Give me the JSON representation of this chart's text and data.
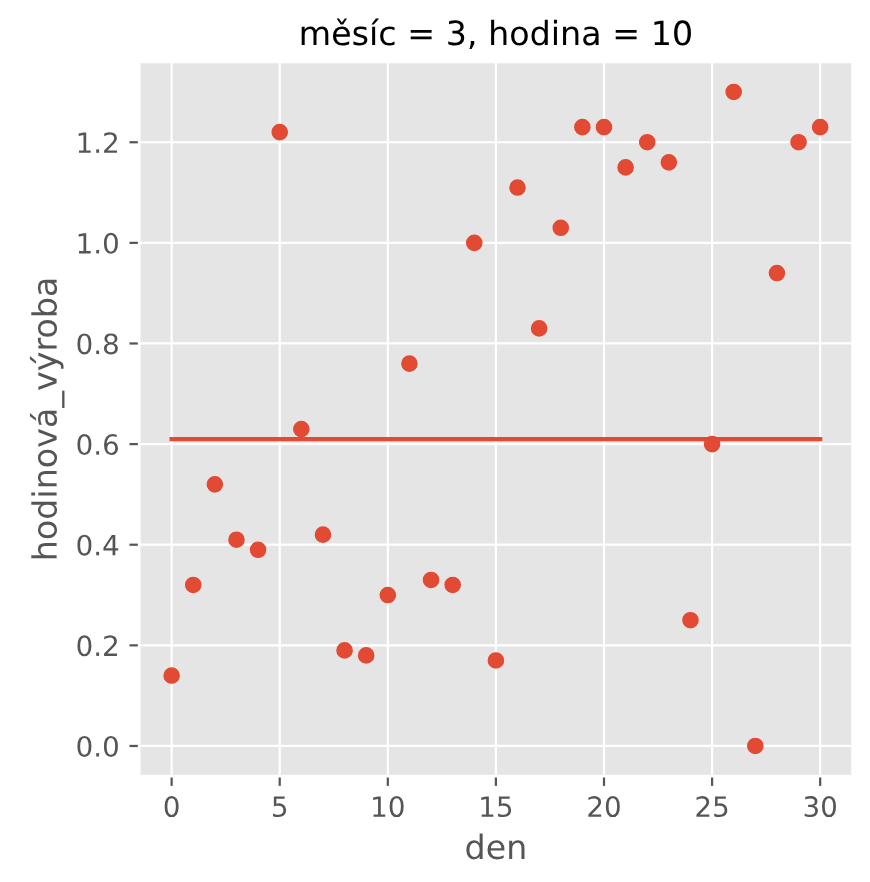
{
  "chart_data": {
    "type": "scatter",
    "title": "měsíc = 3, hodina = 10",
    "xlabel": "den",
    "ylabel": "hodinová_výroba",
    "x": [
      0,
      1,
      2,
      3,
      4,
      5,
      6,
      7,
      8,
      9,
      10,
      11,
      12,
      13,
      14,
      15,
      16,
      17,
      18,
      19,
      20,
      21,
      22,
      23,
      24,
      25,
      26,
      27,
      28,
      29,
      30
    ],
    "series": [
      {
        "color": "#e24a33",
        "marker": "circle",
        "values": [
          0.14,
          0.32,
          0.52,
          0.41,
          0.39,
          1.22,
          0.63,
          0.42,
          0.19,
          0.18,
          0.3,
          0.76,
          0.33,
          0.32,
          1.0,
          0.17,
          1.11,
          0.83,
          1.03,
          1.23,
          1.23,
          1.15,
          1.2,
          1.16,
          0.25,
          0.6,
          1.3,
          0.0,
          0.94,
          1.2,
          1.23
        ]
      },
      {
        "type": "line",
        "marker": "none",
        "color": "#e24a33",
        "x": [
          0,
          30
        ],
        "values": [
          0.61,
          0.61
        ]
      }
    ],
    "xlim": [
      -1.5,
      31.5
    ],
    "ylim": [
      -0.06,
      1.36
    ],
    "xticks": [
      0,
      5,
      10,
      15,
      20,
      25,
      30
    ],
    "yticks": [
      {
        "value": 0,
        "label": "0.0"
      },
      0.2,
      0.4,
      0.6,
      0.8,
      {
        "value": 1,
        "label": "1.0"
      },
      1.2
    ],
    "grid": true
  }
}
